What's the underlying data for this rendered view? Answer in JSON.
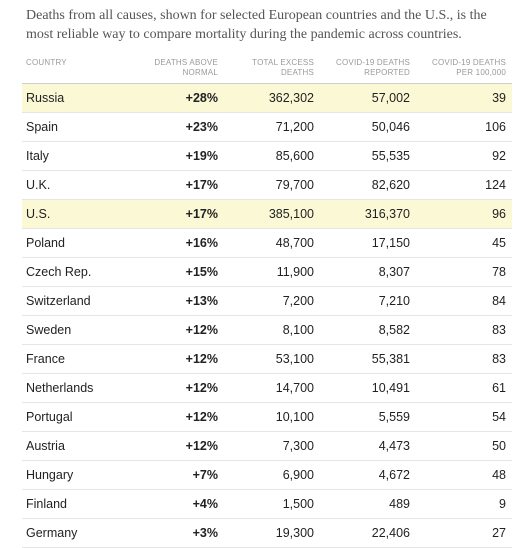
{
  "intro": "Deaths from all causes, shown for selected European countries and the U.S., is the most reliable way to compare mortality during the pandemic across countries.",
  "headers": {
    "country": [
      "COUNTRY"
    ],
    "deaths_above_normal": [
      "DEATHS ABOVE",
      "NORMAL"
    ],
    "total_excess_deaths": [
      "TOTAL EXCESS",
      "DEATHS"
    ],
    "covid_deaths_reported": [
      "COVID-19 DEATHS",
      "REPORTED"
    ],
    "covid_deaths_per_100000": [
      "COVID-19 DEATHS",
      "PER 100,000"
    ]
  },
  "highlight_color": "#fbf8d6",
  "rows": [
    {
      "country": "Russia",
      "above": "+28%",
      "excess": "362,302",
      "covid": "57,002",
      "per": "39",
      "highlight": true
    },
    {
      "country": "Spain",
      "above": "+23%",
      "excess": "71,200",
      "covid": "50,046",
      "per": "106",
      "highlight": false
    },
    {
      "country": "Italy",
      "above": "+19%",
      "excess": "85,600",
      "covid": "55,535",
      "per": "92",
      "highlight": false
    },
    {
      "country": "U.K.",
      "above": "+17%",
      "excess": "79,700",
      "covid": "82,620",
      "per": "124",
      "highlight": false
    },
    {
      "country": "U.S.",
      "above": "+17%",
      "excess": "385,100",
      "covid": "316,370",
      "per": "96",
      "highlight": true
    },
    {
      "country": "Poland",
      "above": "+16%",
      "excess": "48,700",
      "covid": "17,150",
      "per": "45",
      "highlight": false
    },
    {
      "country": "Czech Rep.",
      "above": "+15%",
      "excess": "11,900",
      "covid": "8,307",
      "per": "78",
      "highlight": false
    },
    {
      "country": "Switzerland",
      "above": "+13%",
      "excess": "7,200",
      "covid": "7,210",
      "per": "84",
      "highlight": false
    },
    {
      "country": "Sweden",
      "above": "+12%",
      "excess": "8,100",
      "covid": "8,582",
      "per": "83",
      "highlight": false
    },
    {
      "country": "France",
      "above": "+12%",
      "excess": "53,100",
      "covid": "55,381",
      "per": "83",
      "highlight": false
    },
    {
      "country": "Netherlands",
      "above": "+12%",
      "excess": "14,700",
      "covid": "10,491",
      "per": "61",
      "highlight": false
    },
    {
      "country": "Portugal",
      "above": "+12%",
      "excess": "10,100",
      "covid": "5,559",
      "per": "54",
      "highlight": false
    },
    {
      "country": "Austria",
      "above": "+12%",
      "excess": "7,300",
      "covid": "4,473",
      "per": "50",
      "highlight": false
    },
    {
      "country": "Hungary",
      "above": "+7%",
      "excess": "6,900",
      "covid": "4,672",
      "per": "48",
      "highlight": false
    },
    {
      "country": "Finland",
      "above": "+4%",
      "excess": "1,500",
      "covid": "489",
      "per": "9",
      "highlight": false
    },
    {
      "country": "Germany",
      "above": "+3%",
      "excess": "19,300",
      "covid": "22,406",
      "per": "27",
      "highlight": false
    }
  ]
}
